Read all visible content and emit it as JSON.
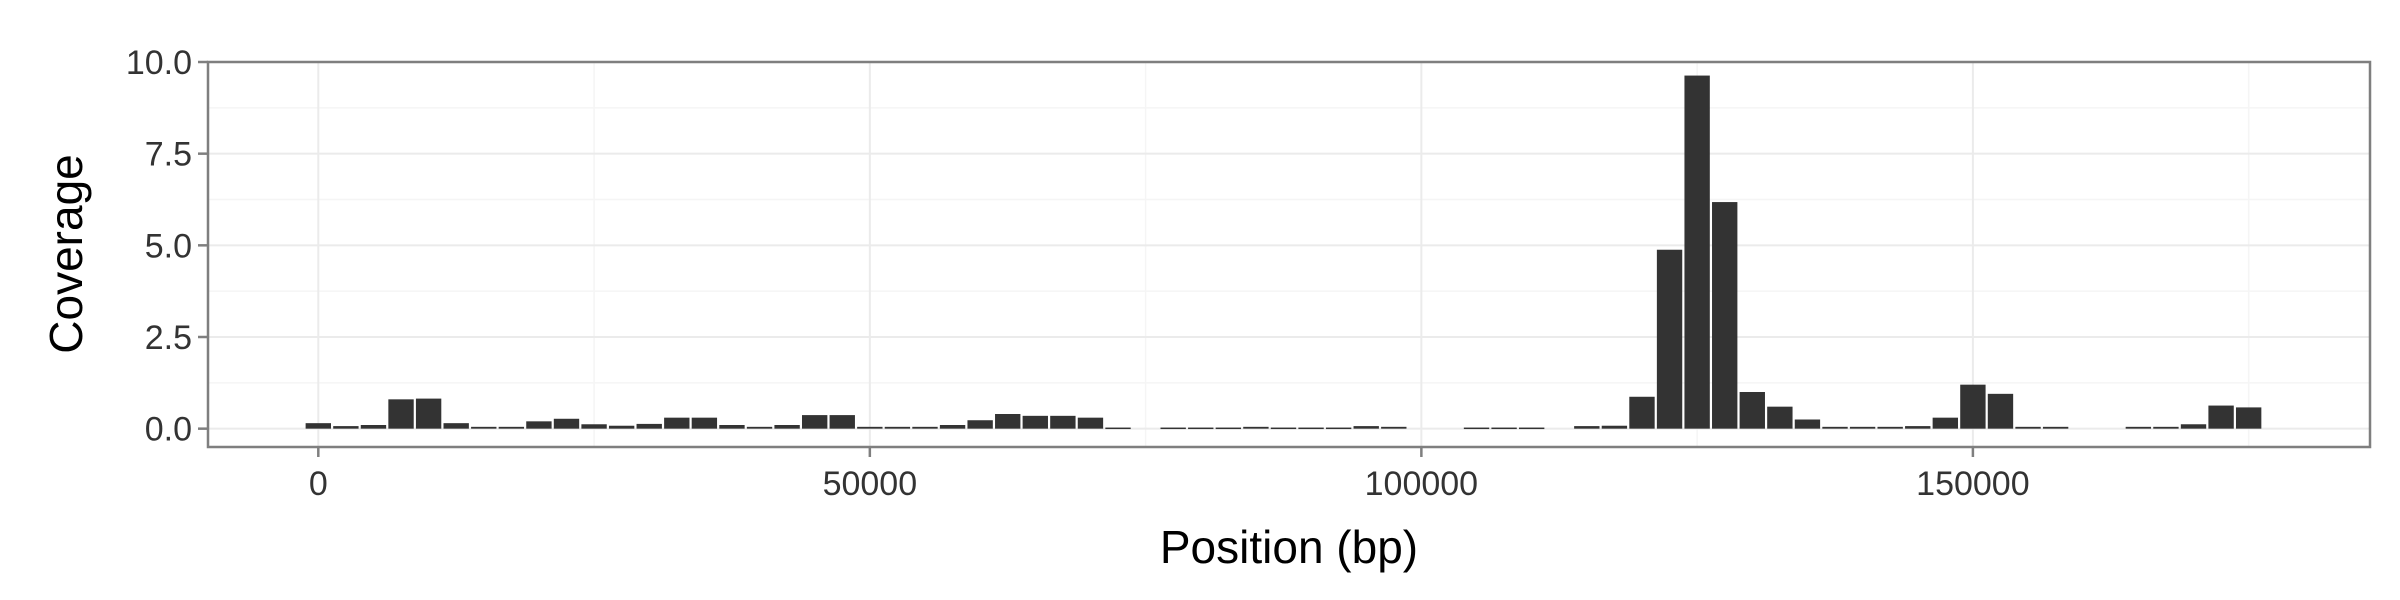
{
  "chart_data": {
    "type": "bar",
    "title": "",
    "xlabel": "Position (bp)",
    "ylabel": "Coverage",
    "xlim": [
      -10000,
      186000
    ],
    "ylim": [
      -0.5,
      10.0
    ],
    "x_ticks": [
      0,
      50000,
      100000,
      150000
    ],
    "x_tick_labels": [
      "0",
      "50000",
      "100000",
      "150000"
    ],
    "y_ticks": [
      0.0,
      2.5,
      5.0,
      7.5,
      10.0
    ],
    "y_tick_labels": [
      "0.0",
      "2.5",
      "5.0",
      "7.5",
      "10.0"
    ],
    "grid": true,
    "bar_width": 2300,
    "colors": {
      "bar": "#333333",
      "panel_border": "#7f7f7f",
      "grid_major": "#ebebeb",
      "grid_minor": "#f5f5f5",
      "tick_text": "#333333",
      "axis_title": "#000000"
    },
    "x": [
      0,
      2500,
      5000,
      7500,
      10000,
      12500,
      15000,
      17500,
      20000,
      22500,
      25000,
      27500,
      30000,
      32500,
      35000,
      37500,
      40000,
      42500,
      45000,
      47500,
      50000,
      52500,
      55000,
      57500,
      60000,
      62500,
      65000,
      67500,
      70000,
      72500,
      75000,
      77500,
      80000,
      82500,
      85000,
      87500,
      90000,
      92500,
      95000,
      97500,
      100000,
      102500,
      105000,
      107500,
      110000,
      112500,
      115000,
      117500,
      120000,
      122500,
      125000,
      127500,
      130000,
      132500,
      135000,
      137500,
      140000,
      142500,
      145000,
      147500,
      150000,
      152500,
      155000,
      157500,
      160000,
      162500,
      165000,
      167500,
      170000,
      172500,
      175000
    ],
    "values": [
      0.15,
      0.07,
      0.1,
      0.8,
      0.82,
      0.15,
      0.05,
      0.05,
      0.2,
      0.27,
      0.12,
      0.08,
      0.13,
      0.3,
      0.3,
      0.1,
      0.05,
      0.1,
      0.37,
      0.37,
      0.05,
      0.05,
      0.05,
      0.1,
      0.23,
      0.4,
      0.35,
      0.35,
      0.3,
      0.03,
      0.0,
      0.03,
      0.03,
      0.03,
      0.05,
      0.03,
      0.03,
      0.03,
      0.07,
      0.05,
      0.0,
      0.0,
      0.03,
      0.03,
      0.03,
      0.0,
      0.07,
      0.08,
      0.87,
      4.88,
      9.63,
      6.18,
      1.0,
      0.6,
      0.25,
      0.05,
      0.05,
      0.05,
      0.07,
      0.3,
      1.2,
      0.95,
      0.05,
      0.05,
      0.0,
      0.0,
      0.05,
      0.05,
      0.12,
      0.63,
      0.58
    ]
  }
}
